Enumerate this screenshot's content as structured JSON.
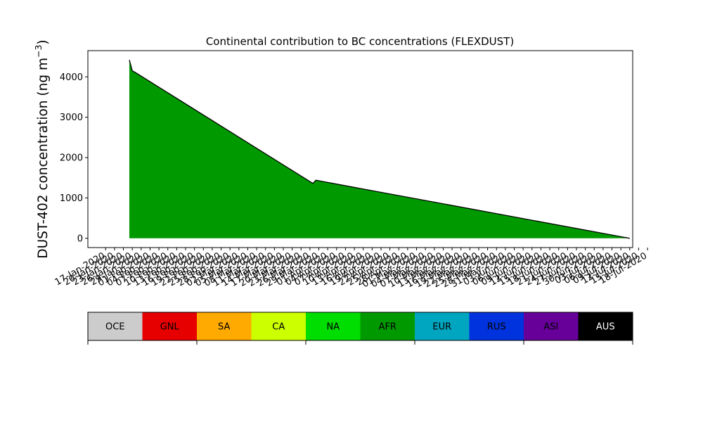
{
  "chart_data": {
    "type": "area",
    "title": "Continental contribution to BC concentrations (FLEXDUST)",
    "ylabel": "DUST-402 concentration (ng m",
    "ylabel_superscript": "−3",
    "ylabel_close": ")",
    "xlabel": "",
    "ylim": [
      -230,
      4650
    ],
    "yticks": [
      0,
      1000,
      2000,
      3000,
      4000
    ],
    "xlim": [
      -6,
      178
    ],
    "grid": false,
    "stacked": true,
    "x_tick_labels": [
      "17-Jan-2020",
      "20-Jan-2020",
      "23-Jan-2020",
      "26-Jan-2020",
      "29-Jan-2020",
      "01-Feb-2020",
      "04-Feb-2020",
      "07-Feb-2020",
      "10-Feb-2020",
      "13-Feb-2020",
      "16-Feb-2020",
      "19-Feb-2020",
      "22-Feb-2020",
      "25-Feb-2020",
      "28-Feb-2020",
      "02-Mar-2020",
      "05-Mar-2020",
      "08-Mar-2020",
      "11-Mar-2020",
      "14-Mar-2020",
      "17-Mar-2020",
      "20-Mar-2020",
      "23-Mar-2020",
      "26-Mar-2020",
      "29-Mar-2020",
      "01-Apr-2020",
      "04-Apr-2020",
      "07-Apr-2020",
      "10-Apr-2020",
      "13-Apr-2020",
      "16-Apr-2020",
      "19-Apr-2020",
      "22-Apr-2020",
      "25-Apr-2020",
      "28-Apr-2020",
      "01-May-2020",
      "04-May-2020",
      "07-May-2020",
      "10-May-2020",
      "13-May-2020",
      "16-May-2020",
      "19-May-2020",
      "22-May-2020",
      "25-May-2020",
      "28-May-2020",
      "31-May-2020",
      "03-Jun-2020",
      "06-Jun-2020",
      "09-Jun-2020",
      "12-Jun-2020",
      "15-Jun-2020",
      "18-Jun-2020",
      "21-Jun-2020",
      "24-Jun-2020",
      "27-Jun-2020",
      "30-Jun-2020",
      "03-Jul-2020",
      "06-Jul-2020",
      "09-Jul-2020",
      "12-Jul-2020",
      "15-Jul-2020",
      "18-Jul-2020"
    ],
    "x_tick_count": 62,
    "x_tick_labels_visible_at_ends": [
      "17-Jan-2020",
      "18-Jul-2020"
    ],
    "series": [
      {
        "name": "AFR",
        "color": "#009a00",
        "x": [
          "2020-01-25",
          "2020-01-26",
          "2020-01-27",
          "2020-03-27",
          "2020-03-28",
          "2020-03-29",
          "2020-07-12"
        ],
        "values": [
          4420,
          4150,
          4110,
          1360,
          1440,
          1425,
          0
        ]
      }
    ],
    "outline_color": "#000000",
    "legend": {
      "placement": "bottom",
      "entries": [
        {
          "label": "OCE",
          "color": "#cccccc",
          "text_color": "#000000"
        },
        {
          "label": "GNL",
          "color": "#e60000",
          "text_color": "#000000"
        },
        {
          "label": "SA",
          "color": "#ffaa00",
          "text_color": "#000000"
        },
        {
          "label": "CA",
          "color": "#ccff00",
          "text_color": "#000000"
        },
        {
          "label": "NA",
          "color": "#00dd00",
          "text_color": "#000000"
        },
        {
          "label": "AFR",
          "color": "#009a00",
          "text_color": "#000000"
        },
        {
          "label": "EUR",
          "color": "#00a5bf",
          "text_color": "#000000"
        },
        {
          "label": "RUS",
          "color": "#0033dd",
          "text_color": "#000000"
        },
        {
          "label": "ASI",
          "color": "#660099",
          "text_color": "#000000"
        },
        {
          "label": "AUS",
          "color": "#000000",
          "text_color": "#ffffff"
        }
      ]
    }
  }
}
